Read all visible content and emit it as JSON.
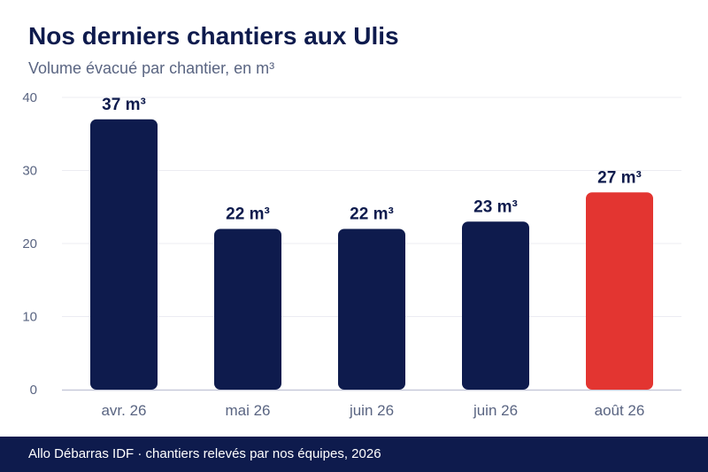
{
  "colors": {
    "bar": "#0e1b4d",
    "highlight": "#e33531",
    "title": "#0e1b4d",
    "subtitle": "#5a6582",
    "tick": "#5a6582",
    "grid": "#ececf2",
    "baseline": "#c7c9d9",
    "footer_bg": "#0e1b4d",
    "footer_text": "#ffffff"
  },
  "chart_data": {
    "type": "bar",
    "title": "Nos derniers chantiers aux Ulis",
    "subtitle": "Volume évacué par chantier, en m³",
    "categories": [
      "avr. 26",
      "mai 26",
      "juin 26",
      "juin 26",
      "août 26"
    ],
    "values": [
      37,
      22,
      22,
      23,
      27
    ],
    "data_labels": [
      "37 m³",
      "22 m³",
      "22 m³",
      "23 m³",
      "27 m³"
    ],
    "highlight_index": 4,
    "ylim": [
      0,
      40
    ],
    "yticks": [
      0,
      10,
      20,
      30,
      40
    ],
    "grid": true
  },
  "footer": {
    "text": "Allo Débarras IDF · chantiers relevés par nos équipes, 2026"
  }
}
